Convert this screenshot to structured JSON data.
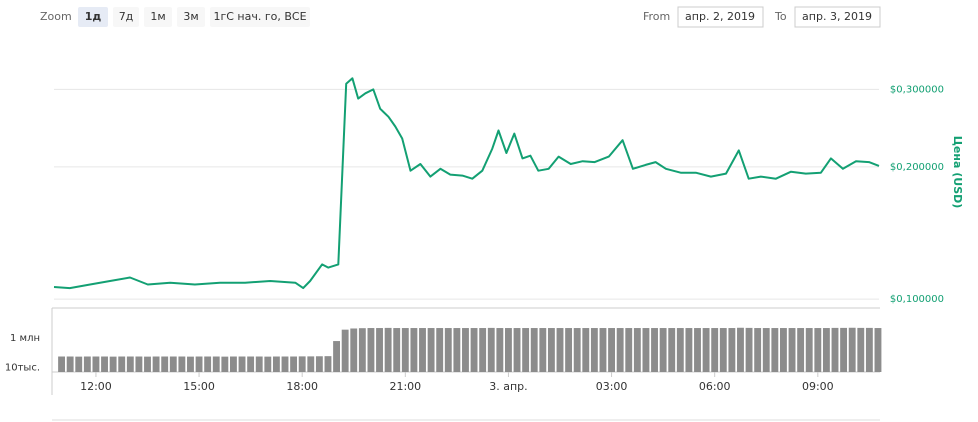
{
  "range_selector": {
    "label": "Zoom",
    "buttons": [
      "1д",
      "7д",
      "1м",
      "3м",
      "1гС нач. го, ВСЕ"
    ],
    "selected": 0,
    "from_label": "From",
    "from": "апр. 2, 2019",
    "to_label": "To",
    "to": "апр. 3, 2019"
  },
  "chart_data": [
    {
      "type": "line",
      "color": "#13a073",
      "log_scale": true,
      "grid": true,
      "y_label": "Цена (USD)",
      "xlim": [
        10.78,
        34.78
      ],
      "ylim": [
        0.097,
        0.35
      ],
      "yticks": [
        {
          "value": 0.1,
          "label": "$0,100000"
        },
        {
          "value": 0.2,
          "label": "$0,200000"
        },
        {
          "value": 0.3,
          "label": "$0,300000"
        }
      ],
      "x": [
        10.78,
        11.24,
        11.83,
        12.41,
        12.99,
        13.51,
        14.16,
        14.88,
        15.61,
        16.34,
        17.07,
        17.8,
        18.03,
        18.23,
        18.58,
        18.76,
        19.05,
        19.28,
        19.46,
        19.63,
        19.84,
        20.07,
        20.27,
        20.51,
        20.71,
        20.91,
        21.15,
        21.44,
        21.73,
        22.02,
        22.31,
        22.66,
        22.95,
        23.24,
        23.53,
        23.71,
        23.94,
        24.17,
        24.41,
        24.64,
        24.87,
        25.17,
        25.46,
        25.81,
        26.16,
        26.51,
        26.92,
        27.32,
        27.62,
        27.99,
        28.28,
        28.58,
        29.01,
        29.45,
        29.89,
        30.33,
        30.7,
        30.99,
        31.34,
        31.78,
        32.22,
        32.65,
        33.09,
        33.38,
        33.73,
        34.11,
        34.49,
        34.78
      ],
      "values": [
        0.1066,
        0.106,
        0.108,
        0.11,
        0.112,
        0.108,
        0.109,
        0.108,
        0.109,
        0.109,
        0.11,
        0.109,
        0.106,
        0.11,
        0.12,
        0.118,
        0.12,
        0.309,
        0.318,
        0.286,
        0.294,
        0.3,
        0.271,
        0.26,
        0.247,
        0.232,
        0.196,
        0.203,
        0.19,
        0.198,
        0.192,
        0.191,
        0.188,
        0.196,
        0.22,
        0.242,
        0.215,
        0.238,
        0.209,
        0.212,
        0.196,
        0.198,
        0.211,
        0.203,
        0.206,
        0.205,
        0.211,
        0.23,
        0.198,
        0.202,
        0.205,
        0.198,
        0.194,
        0.194,
        0.19,
        0.193,
        0.218,
        0.188,
        0.19,
        0.188,
        0.195,
        0.193,
        0.194,
        0.209,
        0.198,
        0.206,
        0.205,
        0.201
      ]
    },
    {
      "type": "bar",
      "color": "#8c8c8c",
      "log_scale": true,
      "xlim": [
        10.78,
        34.78
      ],
      "ylim": [
        5000,
        100000000
      ],
      "xticks": [
        {
          "value": 12,
          "label": "12:00"
        },
        {
          "value": 15,
          "label": "15:00"
        },
        {
          "value": 18,
          "label": "18:00"
        },
        {
          "value": 21,
          "label": "21:00"
        },
        {
          "value": 24,
          "label": "3. апр."
        },
        {
          "value": 27,
          "label": "03:00"
        },
        {
          "value": 30,
          "label": "06:00"
        },
        {
          "value": 33,
          "label": "09:00"
        }
      ],
      "yticks": [
        {
          "value": 1000000,
          "label": "1 млн"
        },
        {
          "value": 10000,
          "label": "10тыс."
        }
      ],
      "x": [
        11,
        11.25,
        11.5,
        11.75,
        12,
        12.25,
        12.5,
        12.75,
        13,
        13.25,
        13.5,
        13.75,
        14,
        14.25,
        14.5,
        14.75,
        15,
        15.25,
        15.5,
        15.75,
        16,
        16.25,
        16.5,
        16.75,
        17,
        17.25,
        17.5,
        17.75,
        18,
        18.25,
        18.5,
        18.75,
        19,
        19.25,
        19.5,
        19.75,
        20,
        20.25,
        20.5,
        20.75,
        21,
        21.25,
        21.5,
        21.75,
        22,
        22.25,
        22.5,
        22.75,
        23,
        23.25,
        23.5,
        23.75,
        24,
        24.25,
        24.5,
        24.75,
        25,
        25.25,
        25.5,
        25.75,
        26,
        26.25,
        26.5,
        26.75,
        27,
        27.25,
        27.5,
        27.75,
        28,
        28.25,
        28.5,
        28.75,
        29,
        29.25,
        29.5,
        29.75,
        30,
        30.25,
        30.5,
        30.75,
        31,
        31.25,
        31.5,
        31.75,
        32,
        32.25,
        32.5,
        32.75,
        33,
        33.25,
        33.5,
        33.75,
        34,
        34.25,
        34.5,
        34.75
      ],
      "values": [
        55000,
        55000,
        54000,
        55000,
        55000,
        55000,
        54000,
        55000,
        55000,
        55000,
        54000,
        55000,
        55000,
        55000,
        55000,
        54000,
        55000,
        55000,
        55000,
        54000,
        55000,
        55000,
        55000,
        55000,
        54000,
        55000,
        55000,
        55000,
        56000,
        56000,
        57000,
        58000,
        600000,
        3500000,
        4200000,
        4400000,
        4500000,
        4500000,
        4600000,
        4500000,
        4500000,
        4500000,
        4500000,
        4500000,
        4500000,
        4500000,
        4500000,
        4500000,
        4500000,
        4500000,
        4600000,
        4500000,
        4500000,
        4500000,
        4500000,
        4500000,
        4500000,
        4500000,
        4500000,
        4500000,
        4500000,
        4500000,
        4500000,
        4500000,
        4500000,
        4500000,
        4500000,
        4500000,
        4500000,
        4500000,
        4500000,
        4500000,
        4500000,
        4500000,
        4500000,
        4500000,
        4500000,
        4500000,
        4500000,
        4700000,
        4600000,
        4500000,
        4500000,
        4500000,
        4500000,
        4500000,
        4500000,
        4500000,
        4500000,
        4500000,
        4600000,
        4600000,
        4700000,
        4600000,
        4600000,
        4500000
      ]
    }
  ]
}
